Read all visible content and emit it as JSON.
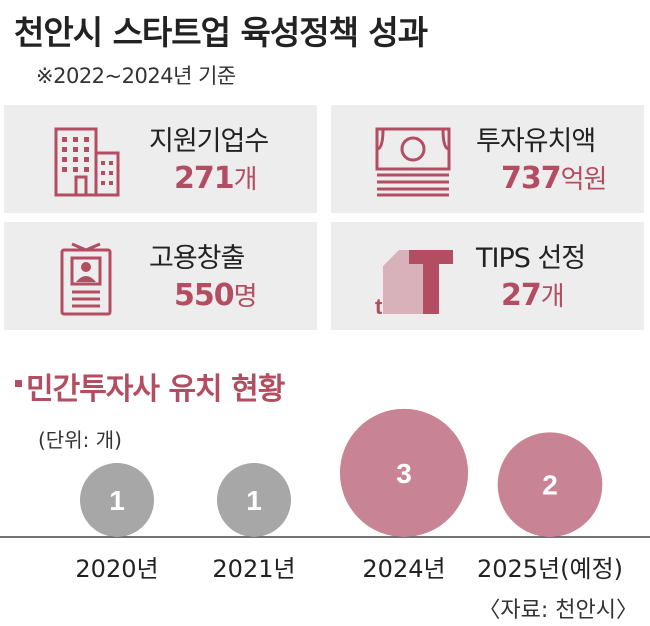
{
  "title": "천안시 스타트업 육성정책 성과",
  "subtitle": "※2022~2024년 기준",
  "colors": {
    "accent": "#b24d62",
    "bubble_gray": "#a7a7a7",
    "bubble_pink": "#c88494",
    "card_bg": "#ededed"
  },
  "cards": [
    {
      "label": "지원기업수",
      "value": "271",
      "unit": "개",
      "icon": "building-icon"
    },
    {
      "label": "투자유치액",
      "value": "737",
      "unit": "억원",
      "icon": "money-stack-icon"
    },
    {
      "label": "고용창출",
      "value": "550",
      "unit": "명",
      "icon": "id-card-icon"
    },
    {
      "label": "TIPS 선정",
      "value": "27",
      "unit": "개",
      "icon": "tips-logo-icon"
    }
  ],
  "section": {
    "title": "민간투자사 유치 현황",
    "unit_note": "(단위: 개)"
  },
  "chart_data": {
    "type": "bubble",
    "categories": [
      "2020년",
      "2021년",
      "2024년",
      "2025년(예정)"
    ],
    "values": [
      1,
      1,
      3,
      2
    ],
    "value_labels": [
      "1",
      "1",
      "3",
      "2"
    ],
    "projected": [
      false,
      false,
      false,
      true
    ]
  },
  "source": "〈자료: 천안시〉"
}
